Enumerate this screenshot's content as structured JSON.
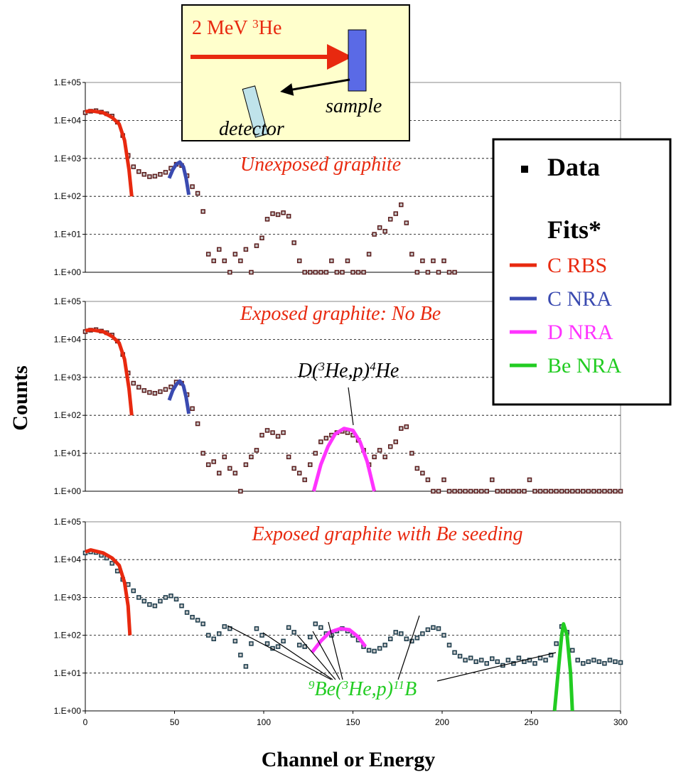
{
  "figure": {
    "ylabel": "Counts",
    "xlabel": "Channel or Energy"
  },
  "inset": {
    "beam": [
      {
        "text": "2 MeV "
      },
      {
        "text": "3",
        "sup": true
      },
      {
        "text": "He"
      }
    ],
    "sample": "sample",
    "detector": "detector"
  },
  "legend": {
    "data": "Data",
    "fits": "Fits*",
    "entries": [
      {
        "name": "C  RBS",
        "color": "#e8290f"
      },
      {
        "name": "C  NRA",
        "color": "#3a4ab0"
      },
      {
        "name": "D NRA",
        "color": "#ff33ff"
      },
      {
        "name": "Be NRA",
        "color": "#22cc22"
      }
    ]
  },
  "chart_data": [
    {
      "type": "scatter",
      "annotation": "Unexposed graphite",
      "log_y": true,
      "grid": true,
      "xlim": [
        0,
        300
      ],
      "ylim": [
        1,
        100000
      ],
      "yticks": [
        {
          "value": 1,
          "label": "1.E+00"
        },
        {
          "value": 10,
          "label": "1.E+01"
        },
        {
          "value": 100,
          "label": "1.E+02"
        },
        {
          "value": 1000,
          "label": "1.E+03"
        },
        {
          "value": 10000,
          "label": "1.E+04"
        },
        {
          "value": 100000,
          "label": "1.E+05"
        }
      ],
      "series": [
        {
          "name": "Data",
          "color": "#5a1a1a",
          "x": [
            0,
            3,
            6,
            9,
            12,
            15,
            18,
            21,
            24,
            27,
            30,
            33,
            36,
            39,
            42,
            45,
            48,
            51,
            54,
            57,
            60,
            63,
            66,
            69,
            72,
            75,
            78,
            81,
            84,
            87,
            90,
            93,
            96,
            99,
            102,
            105,
            108,
            111,
            114,
            117,
            120,
            123,
            126,
            129,
            132,
            135,
            138,
            141,
            144,
            147,
            150,
            153,
            156,
            159,
            162,
            165,
            168,
            171,
            174,
            177,
            180,
            183,
            186,
            189,
            192,
            195,
            198,
            201,
            204,
            207
          ],
          "values": [
            16000,
            17500,
            18000,
            16500,
            15000,
            13000,
            9000,
            4000,
            1200,
            600,
            450,
            380,
            330,
            340,
            380,
            430,
            550,
            700,
            650,
            350,
            180,
            120,
            40,
            3,
            2,
            4,
            2,
            1,
            3,
            2,
            4,
            1,
            5,
            8,
            25,
            35,
            33,
            37,
            30,
            6,
            2,
            1,
            1,
            1,
            1,
            1,
            2,
            1,
            1,
            2,
            1,
            1,
            1,
            3,
            10,
            15,
            12,
            25,
            35,
            60,
            20,
            3,
            1,
            2,
            1,
            2,
            1,
            2,
            1,
            1
          ]
        },
        {
          "name": "C  RBS",
          "color": "#e8290f",
          "x": [
            0,
            3,
            10,
            15,
            19,
            22,
            24.5,
            26
          ],
          "values": [
            17000,
            18000,
            16000,
            12000,
            8000,
            3000,
            500,
            100
          ]
        },
        {
          "name": "C  NRA",
          "color": "#3a4ab0",
          "x": [
            47,
            49,
            51,
            53,
            55,
            56.5,
            58
          ],
          "values": [
            300,
            500,
            700,
            800,
            600,
            300,
            110
          ]
        }
      ]
    },
    {
      "type": "scatter",
      "annotation": "Exposed graphite: No Be",
      "log_y": true,
      "grid": true,
      "reaction": [
        {
          "text": "D("
        },
        {
          "text": "3",
          "sup": true
        },
        {
          "text": "He,p)"
        },
        {
          "text": "4",
          "sup": true
        },
        {
          "text": "He"
        }
      ],
      "xlim": [
        0,
        300
      ],
      "ylim": [
        1,
        100000
      ],
      "yticks": [
        {
          "value": 1,
          "label": "1.E+00"
        },
        {
          "value": 10,
          "label": "1.E+01"
        },
        {
          "value": 100,
          "label": "1.E+02"
        },
        {
          "value": 1000,
          "label": "1.E+03"
        },
        {
          "value": 10000,
          "label": "1.E+04"
        },
        {
          "value": 100000,
          "label": "1.E+05"
        }
      ],
      "series": [
        {
          "name": "Data",
          "color": "#5a1a1a",
          "x": [
            0,
            3,
            6,
            9,
            12,
            15,
            18,
            21,
            24,
            27,
            30,
            33,
            36,
            39,
            42,
            45,
            48,
            51,
            54,
            57,
            60,
            63,
            66,
            69,
            72,
            75,
            78,
            81,
            84,
            87,
            90,
            93,
            96,
            99,
            102,
            105,
            108,
            111,
            114,
            117,
            120,
            123,
            126,
            129,
            132,
            135,
            138,
            141,
            144,
            147,
            150,
            153,
            156,
            159,
            162,
            165,
            168,
            171,
            174,
            177,
            180,
            183,
            186,
            189,
            192,
            195,
            198,
            201,
            204,
            207,
            210,
            213,
            216,
            219,
            222,
            225,
            228,
            231,
            234,
            237,
            240,
            243,
            246,
            249,
            252,
            255,
            258,
            261,
            264,
            267,
            270,
            273,
            276,
            279,
            282,
            285,
            288,
            291,
            294,
            297,
            300
          ],
          "values": [
            16000,
            17500,
            18000,
            16500,
            15000,
            13000,
            9000,
            4000,
            1300,
            700,
            550,
            450,
            400,
            380,
            420,
            480,
            560,
            750,
            700,
            350,
            150,
            60,
            10,
            5,
            6,
            3,
            8,
            4,
            3,
            1,
            5,
            8,
            12,
            30,
            40,
            35,
            28,
            35,
            8,
            4,
            3,
            2,
            5,
            10,
            20,
            25,
            30,
            35,
            38,
            35,
            30,
            22,
            12,
            5,
            8,
            12,
            8,
            15,
            20,
            45,
            50,
            10,
            4,
            3,
            2,
            1,
            1,
            2,
            1,
            1,
            1,
            1,
            1,
            1,
            1,
            1,
            2,
            1,
            1,
            1,
            1,
            1,
            1,
            2,
            1,
            1,
            1,
            1,
            1,
            1,
            1,
            1,
            1,
            1,
            1,
            1,
            1,
            1,
            1,
            1,
            1
          ]
        },
        {
          "name": "C  RBS",
          "color": "#e8290f",
          "x": [
            0,
            3,
            10,
            15,
            19,
            22,
            24.5,
            26
          ],
          "values": [
            17000,
            18000,
            16000,
            12000,
            8000,
            3000,
            500,
            100
          ]
        },
        {
          "name": "C  NRA",
          "color": "#3a4ab0",
          "x": [
            47,
            49,
            51,
            53,
            55,
            56.5,
            58
          ],
          "values": [
            250,
            450,
            650,
            800,
            600,
            300,
            110
          ]
        },
        {
          "name": "D NRA",
          "color": "#ff33ff",
          "x": [
            128,
            132,
            136,
            140,
            145,
            150,
            154,
            158,
            162
          ],
          "values": [
            1,
            5,
            15,
            32,
            45,
            40,
            20,
            6,
            1
          ]
        }
      ]
    },
    {
      "type": "scatter",
      "annotation": "Exposed graphite with Be seeding",
      "log_y": true,
      "grid": true,
      "reaction": [
        {
          "text": "9",
          "sup": true
        },
        {
          "text": "Be("
        },
        {
          "text": "3",
          "sup": true
        },
        {
          "text": "He,p)"
        },
        {
          "text": "11",
          "sup": true
        },
        {
          "text": "B"
        }
      ],
      "xlim": [
        0,
        300
      ],
      "ylim": [
        1,
        100000
      ],
      "xticks": [
        0,
        50,
        100,
        150,
        200,
        250,
        300
      ],
      "yticks": [
        {
          "value": 1,
          "label": "1.E+00"
        },
        {
          "value": 10,
          "label": "1.E+01"
        },
        {
          "value": 100,
          "label": "1.E+02"
        },
        {
          "value": 1000,
          "label": "1.E+03"
        },
        {
          "value": 10000,
          "label": "1.E+04"
        },
        {
          "value": 100000,
          "label": "1.E+05"
        }
      ],
      "series": [
        {
          "name": "Data",
          "color": "#1a3a4a",
          "x": [
            0,
            3,
            6,
            9,
            12,
            15,
            18,
            21,
            24,
            27,
            30,
            33,
            36,
            39,
            42,
            45,
            48,
            51,
            54,
            57,
            60,
            63,
            66,
            69,
            72,
            75,
            78,
            81,
            84,
            87,
            90,
            93,
            96,
            99,
            102,
            105,
            108,
            111,
            114,
            117,
            120,
            123,
            126,
            129,
            132,
            135,
            138,
            141,
            144,
            147,
            150,
            153,
            156,
            159,
            162,
            165,
            168,
            171,
            174,
            177,
            180,
            183,
            186,
            189,
            192,
            195,
            198,
            201,
            204,
            207,
            210,
            213,
            216,
            219,
            222,
            225,
            228,
            231,
            234,
            237,
            240,
            243,
            246,
            249,
            252,
            255,
            258,
            261,
            264,
            267,
            270,
            273,
            276,
            279,
            282,
            285,
            288,
            291,
            294,
            297,
            300
          ],
          "values": [
            15000,
            16000,
            15500,
            13000,
            11000,
            8000,
            5000,
            3000,
            2200,
            1500,
            1000,
            800,
            650,
            600,
            800,
            1000,
            1100,
            900,
            600,
            400,
            300,
            250,
            200,
            100,
            80,
            110,
            170,
            150,
            70,
            30,
            15,
            60,
            150,
            100,
            60,
            45,
            50,
            70,
            160,
            120,
            55,
            50,
            90,
            200,
            160,
            110,
            100,
            130,
            150,
            130,
            100,
            75,
            50,
            40,
            38,
            45,
            55,
            80,
            120,
            110,
            80,
            70,
            85,
            110,
            140,
            160,
            150,
            100,
            55,
            35,
            28,
            22,
            25,
            20,
            22,
            18,
            24,
            20,
            16,
            22,
            18,
            25,
            20,
            22,
            18,
            25,
            22,
            30,
            60,
            170,
            120,
            40,
            22,
            18,
            20,
            22,
            20,
            18,
            22,
            20,
            19
          ]
        },
        {
          "name": "C  RBS",
          "color": "#e8290f",
          "x": [
            0,
            3,
            10,
            15,
            19,
            22,
            24,
            25
          ],
          "values": [
            16000,
            18000,
            15000,
            11000,
            7000,
            2500,
            600,
            100
          ]
        },
        {
          "name": "D NRA",
          "color": "#ff33ff",
          "x": [
            127,
            132,
            137,
            143,
            148,
            153,
            157
          ],
          "values": [
            35,
            70,
            120,
            150,
            140,
            90,
            50
          ]
        },
        {
          "name": "Be NRA",
          "color": "#22cc22",
          "x": [
            263,
            265,
            267,
            268,
            270,
            272,
            273
          ],
          "values": [
            1,
            10,
            100,
            200,
            100,
            10,
            1
          ]
        }
      ]
    }
  ]
}
